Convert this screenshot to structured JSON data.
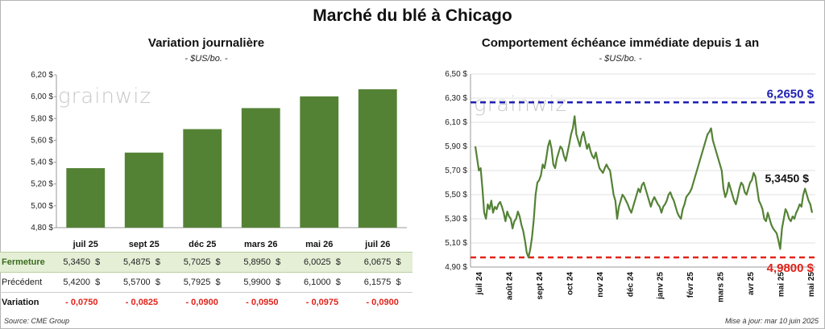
{
  "title": "Marché du blé à Chicago",
  "watermark": "grainwiz",
  "left_chart": {
    "subtitle": "Variation journalière",
    "unit": "- $US/bo. -"
  },
  "right_chart": {
    "subtitle": "Comportement échéance immédiate depuis 1 an",
    "unit": "- $US/bo. -"
  },
  "table": {
    "rows": [
      {
        "label": "Fermeture",
        "values": [
          "5,3450",
          "5,4875",
          "5,7025",
          "5,8950",
          "6,0025",
          "6,0675"
        ]
      },
      {
        "label": "Précédent",
        "values": [
          "5,4200",
          "5,5700",
          "5,7925",
          "5,9900",
          "6,1000",
          "6,1575"
        ]
      },
      {
        "label": "Variation",
        "values": [
          "- 0,0750",
          "- 0,0825",
          "- 0,0900",
          "- 0,0950",
          "- 0,0975",
          "- 0,0900"
        ]
      }
    ],
    "currency": "$"
  },
  "footer": {
    "source": "Source: CME Group",
    "update": "Mise à jour: mar 10 juin 2025"
  },
  "colors": {
    "bar": "#548235",
    "line": "#548235",
    "max_line": "#1f1fb4",
    "min_line": "#e2231a",
    "negative": "#e2231a"
  },
  "chart_data": [
    {
      "type": "bar",
      "categories": [
        "juil 25",
        "sept 25",
        "déc 25",
        "mars 26",
        "mai 26",
        "juil 26"
      ],
      "values": [
        5.345,
        5.4875,
        5.7025,
        5.895,
        6.0025,
        6.0675
      ],
      "ylim": [
        4.8,
        6.2
      ],
      "yticks": [
        "4,80 $",
        "5,00 $",
        "5,20 $",
        "5,40 $",
        "5,60 $",
        "5,80 $",
        "6,00 $",
        "6,20 $"
      ],
      "grid": false
    },
    {
      "type": "line",
      "ylim": [
        4.9,
        6.5
      ],
      "yticks": [
        "4,90 $",
        "5,10 $",
        "5,30 $",
        "5,50 $",
        "5,70 $",
        "5,90 $",
        "6,10 $",
        "6,30 $",
        "6,50 $"
      ],
      "xticks": [
        "juil 24",
        "août 24",
        "sept 24",
        "oct 24",
        "nov 24",
        "déc 24",
        "janv 25",
        "févr 25",
        "mars 25",
        "avr 25",
        "mai 25",
        "mai 25"
      ],
      "max_label": "6,2650 $",
      "min_label": "4,9800 $",
      "last_label": "5,3450 $",
      "max_value": 6.265,
      "min_value": 4.98,
      "series": [
        {
          "values": [
            5.9,
            5.8,
            5.7,
            5.72,
            5.55,
            5.35,
            5.3,
            5.42,
            5.38,
            5.45,
            5.35,
            5.4,
            5.38,
            5.42,
            5.44,
            5.4,
            5.35,
            5.28,
            5.36,
            5.32,
            5.3,
            5.22,
            5.28,
            5.3,
            5.36,
            5.32,
            5.25,
            5.2,
            5.12,
            5.02,
            4.98,
            5.05,
            5.15,
            5.3,
            5.5,
            5.6,
            5.62,
            5.66,
            5.75,
            5.72,
            5.8,
            5.9,
            5.95,
            5.88,
            5.75,
            5.72,
            5.8,
            5.85,
            5.9,
            5.88,
            5.82,
            5.78,
            5.85,
            5.92,
            6.0,
            6.05,
            6.15,
            6.0,
            5.95,
            5.9,
            5.98,
            6.02,
            5.95,
            5.88,
            5.92,
            5.86,
            5.82,
            5.8,
            5.85,
            5.78,
            5.72,
            5.7,
            5.68,
            5.72,
            5.75,
            5.72,
            5.7,
            5.6,
            5.5,
            5.45,
            5.3,
            5.4,
            5.45,
            5.5,
            5.48,
            5.45,
            5.42,
            5.38,
            5.35,
            5.4,
            5.45,
            5.5,
            5.55,
            5.52,
            5.58,
            5.6,
            5.55,
            5.5,
            5.45,
            5.4,
            5.45,
            5.48,
            5.45,
            5.42,
            5.4,
            5.35,
            5.4,
            5.42,
            5.45,
            5.5,
            5.52,
            5.48,
            5.45,
            5.4,
            5.35,
            5.32,
            5.3,
            5.38,
            5.42,
            5.48,
            5.5,
            5.52,
            5.55,
            5.6,
            5.65,
            5.7,
            5.75,
            5.8,
            5.85,
            5.9,
            5.95,
            6.0,
            6.02,
            6.05,
            5.95,
            5.9,
            5.85,
            5.8,
            5.75,
            5.7,
            5.55,
            5.48,
            5.52,
            5.6,
            5.55,
            5.5,
            5.45,
            5.42,
            5.48,
            5.55,
            5.6,
            5.58,
            5.52,
            5.5,
            5.55,
            5.6,
            5.62,
            5.68,
            5.65,
            5.55,
            5.45,
            5.42,
            5.38,
            5.3,
            5.28,
            5.35,
            5.3,
            5.25,
            5.22,
            5.2,
            5.18,
            5.12,
            5.05,
            5.22,
            5.3,
            5.38,
            5.35,
            5.3,
            5.28,
            5.32,
            5.3,
            5.35,
            5.38,
            5.42,
            5.4,
            5.5,
            5.55,
            5.5,
            5.45,
            5.42,
            5.35
          ]
        }
      ]
    }
  ]
}
